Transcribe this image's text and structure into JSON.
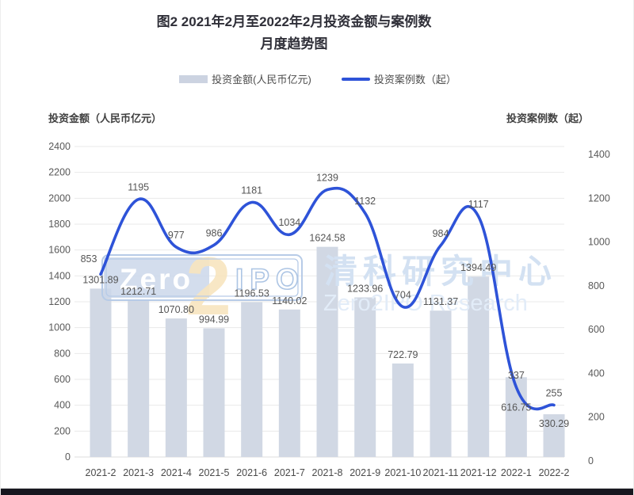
{
  "title": {
    "line1": "图2  2021年2月至2022年2月投资金额与案例数",
    "line2": "月度趋势图"
  },
  "legend": {
    "items": [
      {
        "label": "投资金额(人民币亿元)",
        "type": "bar"
      },
      {
        "label": "投资案例数（起）",
        "type": "line"
      }
    ]
  },
  "axes": {
    "left_title": "投资金额（人民币亿元）",
    "right_title": "投资案例数（起）"
  },
  "watermark": {
    "zero": "Zero",
    "two": "2",
    "ipo": "IPO",
    "cn": "清科研究中心",
    "en": "Zero2IPO Research"
  },
  "colors": {
    "bar": "#d1d8e4",
    "line": "#2e53d8",
    "grid": "#eaeaea",
    "baseline": "#dcdcdc",
    "tick": "#595959",
    "xlabel": "#4a4a4a",
    "label": "#555555",
    "footer": "#17171f"
  },
  "chart_data": {
    "type": "bar+line",
    "title": "图2 2021年2月至2022年2月投资金额与案例数月度趋势图",
    "categories": [
      "2021-2",
      "2021-3",
      "2021-4",
      "2021-5",
      "2021-6",
      "2021-7",
      "2021-8",
      "2021-9",
      "2021-10",
      "2021-11",
      "2021-12",
      "2022-1",
      "2022-2"
    ],
    "series": [
      {
        "name": "投资金额(人民币亿元)",
        "type": "bar",
        "axis": "left",
        "values": [
          1301.89,
          1212.71,
          1070.8,
          994.99,
          1196.53,
          1140.02,
          1624.58,
          1233.96,
          722.79,
          1131.37,
          1394.49,
          616.75,
          330.29
        ],
        "labels": [
          "1301.89",
          "1212.71",
          "1070.80",
          "994.99",
          "1196.53",
          "1140.02",
          "1624.58",
          "1233.96",
          "722.79",
          "1131.37",
          "1394.49",
          "616.75",
          "330.29"
        ]
      },
      {
        "name": "投资案例数（起）",
        "type": "line",
        "axis": "right",
        "values": [
          853,
          1195,
          977,
          986,
          1181,
          1034,
          1239,
          1132,
          704,
          984,
          1117,
          337,
          255
        ],
        "labels": [
          "853",
          "1195",
          "977",
          "986",
          "1181",
          "1034",
          "1239",
          "1132",
          "704",
          "984",
          "1117",
          "337",
          "255"
        ]
      }
    ],
    "left_axis": {
      "min": 0,
      "max": 2400,
      "step": 200
    },
    "right_axis": {
      "min": 0,
      "max": 1400,
      "step": 200
    },
    "grid": true,
    "legend_position": "top",
    "smoothed_line": true
  }
}
